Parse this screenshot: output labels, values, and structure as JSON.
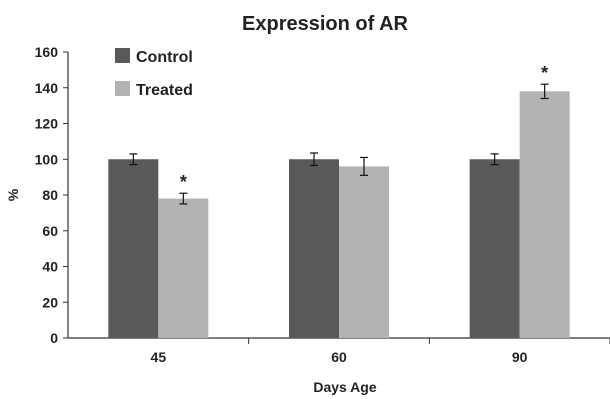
{
  "chart_data": {
    "type": "bar",
    "title": "Expression of AR",
    "xlabel": "Days Age",
    "ylabel": "%",
    "categories": [
      "45",
      "60",
      "90"
    ],
    "ylim": [
      0,
      160
    ],
    "yticks": [
      0,
      20,
      40,
      60,
      80,
      100,
      120,
      140,
      160
    ],
    "grid": false,
    "legend_position": "top-left",
    "series": [
      {
        "name": "Control",
        "color": "#595959",
        "values": [
          100,
          100,
          100
        ],
        "errors": [
          3,
          3.5,
          3
        ]
      },
      {
        "name": "Treated",
        "color": "#b3b3b3",
        "values": [
          78,
          96,
          138
        ],
        "errors": [
          3,
          5,
          4
        ]
      }
    ],
    "annotations": [
      {
        "category": "45",
        "series": "Treated",
        "text": "*"
      },
      {
        "category": "90",
        "series": "Treated",
        "text": "*"
      }
    ]
  }
}
